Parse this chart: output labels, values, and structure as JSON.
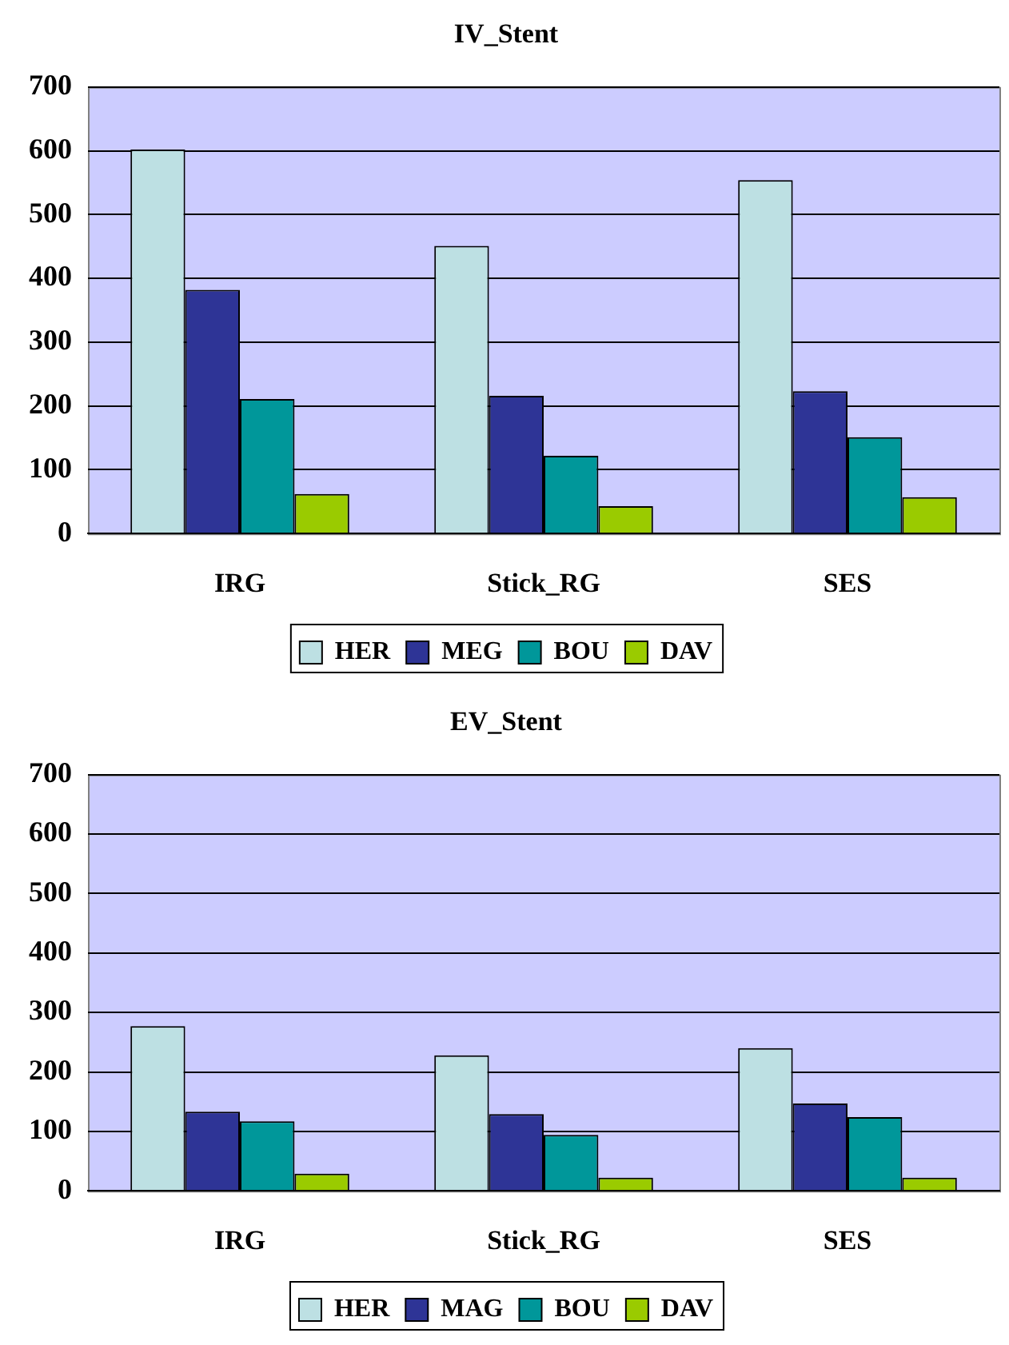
{
  "chart_data": [
    {
      "type": "bar",
      "title": "IV_Stent",
      "categories": [
        "IRG",
        "Stick_RG",
        "SES"
      ],
      "series": [
        {
          "name": "HER",
          "color": "#bde0e3",
          "values": [
            602,
            451,
            554
          ]
        },
        {
          "name": "MEG",
          "color": "#2e3496",
          "values": [
            382,
            216,
            223
          ]
        },
        {
          "name": "BOU",
          "color": "#00979a",
          "values": [
            211,
            122,
            151
          ]
        },
        {
          "name": "DAV",
          "color": "#9acb00",
          "values": [
            62,
            43,
            57
          ]
        }
      ],
      "ylim": [
        0,
        700
      ],
      "yticks": [
        0,
        100,
        200,
        300,
        400,
        500,
        600,
        700
      ],
      "grid": "y",
      "legend": "bottom"
    },
    {
      "type": "bar",
      "title": "EV_Stent",
      "categories": [
        "IRG",
        "Stick_RG",
        "SES"
      ],
      "series": [
        {
          "name": "HER",
          "color": "#bde0e3",
          "values": [
            277,
            228,
            240
          ]
        },
        {
          "name": "MAG",
          "color": "#2e3496",
          "values": [
            133,
            129,
            147
          ]
        },
        {
          "name": "BOU",
          "color": "#00979a",
          "values": [
            117,
            94,
            124
          ]
        },
        {
          "name": "DAV",
          "color": "#9acb00",
          "values": [
            29,
            22,
            22
          ]
        }
      ],
      "ylim": [
        0,
        700
      ],
      "yticks": [
        0,
        100,
        200,
        300,
        400,
        500,
        600,
        700
      ],
      "grid": "y",
      "legend": "bottom"
    }
  ]
}
